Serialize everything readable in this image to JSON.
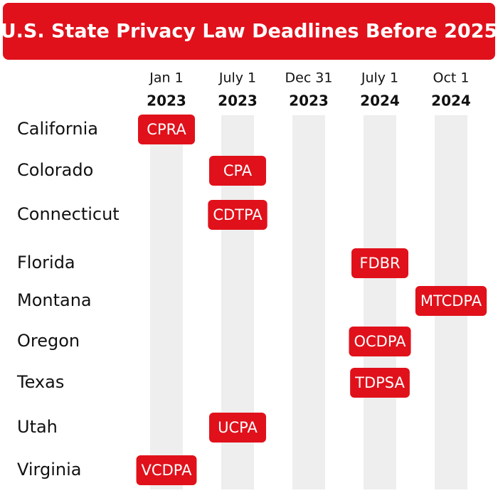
{
  "title": "U.S. State Privacy Law Deadlines Before 2025",
  "columns": [
    {
      "date": "Jan 1",
      "year": "2023"
    },
    {
      "date": "July 1",
      "year": "2023"
    },
    {
      "date": "Dec 31",
      "year": "2023"
    },
    {
      "date": "July 1",
      "year": "2024"
    },
    {
      "date": "Oct 1",
      "year": "2024"
    }
  ],
  "rows": [
    {
      "state": "California",
      "cells": [
        "CPRA",
        null,
        null,
        null,
        null
      ]
    },
    {
      "state": "Colorado",
      "cells": [
        null,
        "CPA",
        null,
        null,
        null
      ]
    },
    {
      "state": "Connecticut",
      "cells": [
        null,
        "CDTPA",
        null,
        null,
        null
      ]
    },
    {
      "state": "Florida",
      "cells": [
        null,
        null,
        null,
        "FDBR",
        null
      ]
    },
    {
      "state": "Montana",
      "cells": [
        null,
        null,
        null,
        null,
        "MTCDPA"
      ]
    },
    {
      "state": "Oregon",
      "cells": [
        null,
        null,
        null,
        "OCDPA",
        null
      ]
    },
    {
      "state": "Texas",
      "cells": [
        null,
        null,
        null,
        "TDPSA",
        null
      ]
    },
    {
      "state": "Utah",
      "cells": [
        null,
        "UCPA",
        null,
        null,
        null
      ]
    },
    {
      "state": "Virginia",
      "cells": [
        "VCDPA",
        null,
        null,
        null,
        null
      ]
    }
  ]
}
